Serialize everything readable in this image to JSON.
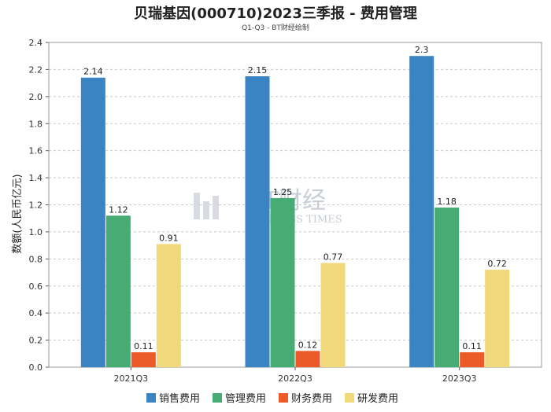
{
  "chart_data": {
    "type": "bar",
    "title": "贝瑞基因(000710)2023三季报 - 费用管理",
    "subtitle": "Q1-Q3 - BT财经绘制",
    "ylabel": "数额(人民币亿元)",
    "xlabel": "",
    "ylim": [
      0,
      2.4
    ],
    "yticks": [
      "0.0",
      "0.2",
      "0.4",
      "0.6",
      "0.8",
      "1.0",
      "1.2",
      "1.4",
      "1.6",
      "1.8",
      "2.0",
      "2.2",
      "2.4"
    ],
    "grid": true,
    "legend_position": "bottom",
    "categories": [
      "2021Q3",
      "2022Q3",
      "2023Q3"
    ],
    "series": [
      {
        "name": "销售费用",
        "color": "#3a84c4",
        "values": [
          2.14,
          2.15,
          2.3
        ]
      },
      {
        "name": "管理费用",
        "color": "#47ab74",
        "values": [
          1.12,
          1.25,
          1.18
        ]
      },
      {
        "name": "财务费用",
        "color": "#ec5a2a",
        "values": [
          0.11,
          0.12,
          0.11
        ]
      },
      {
        "name": "研发费用",
        "color": "#efd97a",
        "values": [
          0.91,
          0.77,
          0.72
        ]
      }
    ],
    "data_labels": [
      [
        "2.14",
        "2.15",
        "2.3"
      ],
      [
        "1.12",
        "1.25",
        "1.18"
      ],
      [
        "0.11",
        "0.12",
        "0.11"
      ],
      [
        "0.91",
        "0.77",
        "0.72"
      ]
    ]
  },
  "watermark": {
    "logo_text": "BT财经",
    "sub_text": "BUSINESS TIMES"
  }
}
